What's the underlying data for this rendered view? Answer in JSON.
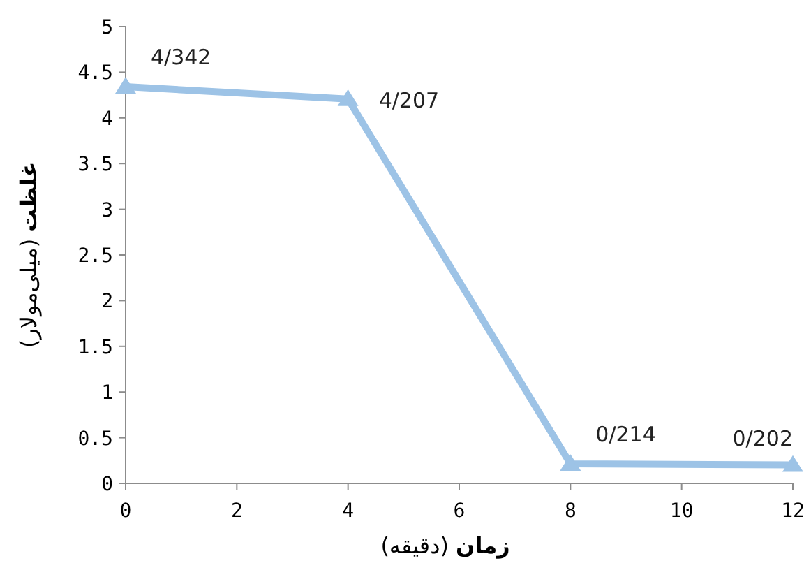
{
  "chart_data": {
    "type": "line",
    "xlabel": "**زمان** (دقیقه)",
    "ylabel": "**غلظت** (میلی‌مولار)",
    "x": [
      0,
      4,
      8,
      12
    ],
    "series": [
      {
        "color": "#9dc3e6",
        "values": [
          4.342,
          4.207,
          0.214,
          0.202
        ],
        "value_labels": [
          "4/342",
          "4/207",
          "0/214",
          "0/202"
        ]
      }
    ],
    "xlim": [
      0,
      12
    ],
    "ylim": [
      0,
      5
    ],
    "xticks": [
      0,
      2,
      4,
      6,
      8,
      10,
      12
    ],
    "yticks": [
      0,
      0.5,
      1,
      1.5,
      2,
      2.5,
      3,
      3.5,
      4,
      4.5,
      5
    ],
    "marker": "triangle",
    "line_style": "solid"
  }
}
